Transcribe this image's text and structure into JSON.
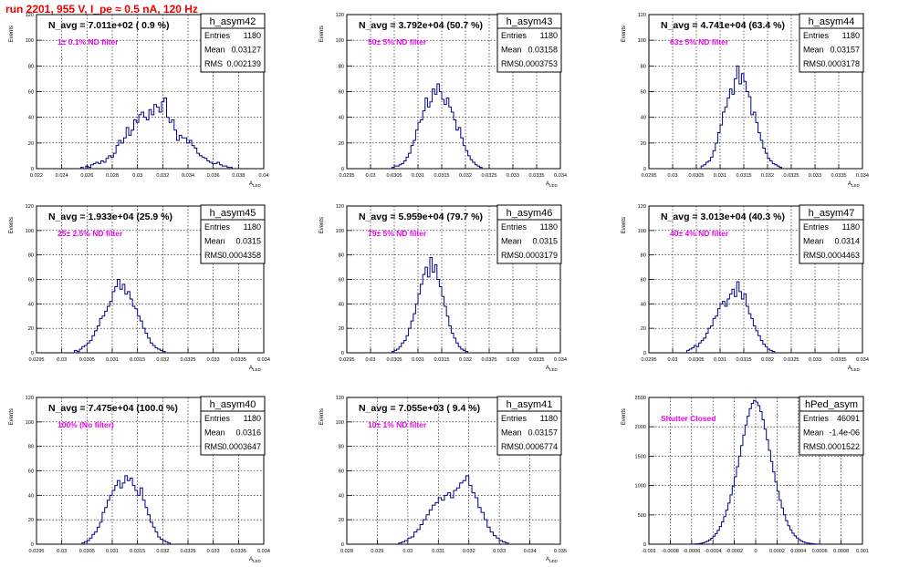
{
  "title": "run 2201,   955 V, I_pe ≈ 0.5 nA, 120 Hz",
  "colors": {
    "title": "#ee0000",
    "histogram": "#00008b",
    "annotation": "#ee00ee",
    "grid": "#000000"
  },
  "chart_data": [
    {
      "type": "histogram",
      "histogram_name": "h_asym42",
      "header": "N_avg = 7.011e+02 ( 0.9 %)",
      "annotation": "1± 0.1% ND filter",
      "stats": {
        "entries": "1180",
        "mean": "0.03127",
        "rms": "0.002139"
      },
      "ylabel": "Events",
      "xlabel": "A_LED",
      "grid": true,
      "xlim": [
        0.022,
        0.04
      ],
      "ylim": [
        0,
        120
      ],
      "yticks": [
        0,
        20,
        40,
        60,
        80,
        100,
        120
      ],
      "xticks": [
        0.022,
        0.024,
        0.026,
        0.028,
        0.03,
        0.032,
        0.034,
        0.036,
        0.038,
        0.04
      ],
      "xtick_labels": [
        "0.022",
        "0.024",
        "0.026",
        "0.028",
        "0.03",
        "0.032",
        "0.034",
        "0.036",
        "0.038",
        "0.04"
      ],
      "bins": {
        "x0": 0.0255,
        "width": 0.0002,
        "counts": [
          1,
          0,
          2,
          1,
          3,
          4,
          5,
          4,
          6,
          5,
          8,
          10,
          9,
          12,
          18,
          22,
          20,
          24,
          32,
          26,
          30,
          38,
          36,
          42,
          44,
          40,
          38,
          46,
          42,
          50,
          48,
          44,
          52,
          55,
          40,
          36,
          38,
          30,
          22,
          26,
          24,
          24,
          20,
          22,
          18,
          16,
          12,
          10,
          9,
          8,
          6,
          5,
          4,
          4,
          5,
          3,
          2,
          2,
          1,
          1
        ]
      }
    },
    {
      "type": "histogram",
      "histogram_name": "h_asym43",
      "header": "N_avg = 3.792e+04 (50.7 %)",
      "annotation": "50± 5% ND filter",
      "stats": {
        "entries": "1180",
        "mean": "0.03158",
        "rms": "0.0003753"
      },
      "ylabel": "Events",
      "xlabel": "A_LED",
      "grid": true,
      "xlim": [
        0.0295,
        0.034
      ],
      "ylim": [
        0,
        120
      ],
      "yticks": [
        0,
        20,
        40,
        60,
        80,
        100,
        120
      ],
      "xticks": [
        0.0295,
        0.03,
        0.0305,
        0.031,
        0.0315,
        0.032,
        0.0325,
        0.033,
        0.0335,
        0.034
      ],
      "xtick_labels": [
        "0.0295",
        "0.03",
        "0.0305",
        "0.031",
        "0.0315",
        "0.032",
        "0.0325",
        "0.033",
        "0.0335",
        "0.034"
      ],
      "bins": {
        "x0": 0.03045,
        "width": 5e-05,
        "counts": [
          1,
          2,
          2,
          3,
          4,
          6,
          9,
          12,
          18,
          22,
          30,
          36,
          38,
          45,
          55,
          48,
          52,
          62,
          58,
          66,
          60,
          54,
          50,
          55,
          48,
          44,
          38,
          30,
          32,
          24,
          18,
          14,
          10,
          7,
          5,
          3,
          2,
          1
        ]
      }
    },
    {
      "type": "histogram",
      "histogram_name": "h_asym44",
      "header": "N_avg = 4.741e+04 (63.4 %)",
      "annotation": "63± 5% ND filter",
      "stats": {
        "entries": "1180",
        "mean": "0.03157",
        "rms": "0.0003178"
      },
      "ylabel": "Events",
      "xlabel": "A_LED",
      "grid": true,
      "xlim": [
        0.0295,
        0.034
      ],
      "ylim": [
        0,
        120
      ],
      "yticks": [
        0,
        20,
        40,
        60,
        80,
        100,
        120
      ],
      "xticks": [
        0.0295,
        0.03,
        0.0305,
        0.031,
        0.0315,
        0.032,
        0.0325,
        0.033,
        0.0335,
        0.034
      ],
      "xtick_labels": [
        "0.0295",
        "0.03",
        "0.0305",
        "0.031",
        "0.0315",
        "0.032",
        "0.0325",
        "0.033",
        "0.0335",
        "0.034"
      ],
      "bins": {
        "x0": 0.0306,
        "width": 5e-05,
        "counts": [
          2,
          3,
          5,
          6,
          9,
          14,
          20,
          28,
          34,
          44,
          48,
          55,
          62,
          58,
          70,
          80,
          66,
          74,
          68,
          60,
          56,
          42,
          44,
          36,
          28,
          22,
          16,
          12,
          8,
          6,
          4,
          3,
          2,
          1
        ]
      }
    },
    {
      "type": "histogram",
      "histogram_name": "h_asym45",
      "header": "N_avg = 1.933e+04 (25.9 %)",
      "annotation": "25± 2.5% ND filter",
      "stats": {
        "entries": "1180",
        "mean": "0.0315",
        "rms": "0.0004358"
      },
      "ylabel": "Events",
      "xlabel": "A_LED",
      "grid": true,
      "xlim": [
        0.0295,
        0.034
      ],
      "ylim": [
        0,
        120
      ],
      "yticks": [
        0,
        20,
        40,
        60,
        80,
        100,
        120
      ],
      "xticks": [
        0.0295,
        0.03,
        0.0305,
        0.031,
        0.0315,
        0.032,
        0.0325,
        0.033,
        0.0335,
        0.034
      ],
      "xtick_labels": [
        "0.0295",
        "0.03",
        "0.0305",
        "0.031",
        "0.0315",
        "0.032",
        "0.0325",
        "0.033",
        "0.0335",
        "0.034"
      ],
      "bins": {
        "x0": 0.03025,
        "width": 5e-05,
        "counts": [
          2,
          1,
          3,
          5,
          6,
          8,
          10,
          14,
          18,
          22,
          28,
          30,
          34,
          38,
          42,
          50,
          54,
          60,
          52,
          56,
          48,
          50,
          44,
          38,
          36,
          30,
          26,
          20,
          16,
          12,
          8,
          6,
          4,
          3,
          2,
          1
        ]
      }
    },
    {
      "type": "histogram",
      "histogram_name": "h_asym46",
      "header": "N_avg = 5.959e+04 (79.7 %)",
      "annotation": "79± 5% ND filter",
      "stats": {
        "entries": "1180",
        "mean": "0.0315",
        "rms": "0.0003179"
      },
      "ylabel": "Events",
      "xlabel": "A_LED",
      "grid": true,
      "xlim": [
        0.0295,
        0.034
      ],
      "ylim": [
        0,
        120
      ],
      "yticks": [
        0,
        20,
        40,
        60,
        80,
        100,
        120
      ],
      "xticks": [
        0.0295,
        0.03,
        0.0305,
        0.031,
        0.0315,
        0.032,
        0.0325,
        0.033,
        0.0335,
        0.034
      ],
      "xtick_labels": [
        "0.0295",
        "0.03",
        "0.0305",
        "0.031",
        "0.0315",
        "0.032",
        "0.0325",
        "0.033",
        "0.0335",
        "0.034"
      ],
      "bins": {
        "x0": 0.03045,
        "width": 5e-05,
        "counts": [
          1,
          2,
          3,
          5,
          8,
          10,
          14,
          20,
          26,
          32,
          40,
          48,
          56,
          64,
          70,
          62,
          78,
          66,
          72,
          60,
          54,
          46,
          38,
          30,
          22,
          16,
          12,
          8,
          5,
          3,
          2,
          1
        ]
      }
    },
    {
      "type": "histogram",
      "histogram_name": "h_asym47",
      "header": "N_avg = 3.013e+04 (40.3 %)",
      "annotation": "40± 4% ND filter",
      "stats": {
        "entries": "1180",
        "mean": "0.0314",
        "rms": "0.0004463"
      },
      "ylabel": "Events",
      "xlabel": "A_LED",
      "grid": true,
      "xlim": [
        0.0295,
        0.034
      ],
      "ylim": [
        0,
        120
      ],
      "yticks": [
        0,
        20,
        40,
        60,
        80,
        100,
        120
      ],
      "xticks": [
        0.0295,
        0.03,
        0.0305,
        0.031,
        0.0315,
        0.032,
        0.0325,
        0.033,
        0.0335,
        0.034
      ],
      "xtick_labels": [
        "0.0295",
        "0.03",
        "0.0305",
        "0.031",
        "0.0315",
        "0.032",
        "0.0325",
        "0.033",
        "0.0335",
        "0.034"
      ],
      "bins": {
        "x0": 0.0303,
        "width": 5e-05,
        "counts": [
          2,
          3,
          4,
          6,
          5,
          8,
          10,
          12,
          16,
          20,
          22,
          28,
          30,
          36,
          40,
          42,
          38,
          44,
          48,
          52,
          46,
          58,
          50,
          44,
          48,
          38,
          32,
          28,
          22,
          18,
          14,
          10,
          7,
          5,
          3,
          2,
          1
        ]
      }
    },
    {
      "type": "histogram",
      "histogram_name": "h_asym40",
      "header": "N_avg = 7.475e+04 (100.0 %)",
      "annotation": "100% (No filter)",
      "stats": {
        "entries": "1180",
        "mean": "0.0316",
        "rms": "0.0003647"
      },
      "ylabel": "Events",
      "xlabel": "A_LED",
      "grid": true,
      "xlim": [
        0.0295,
        0.034
      ],
      "ylim": [
        0,
        120
      ],
      "yticks": [
        0,
        20,
        40,
        60,
        80,
        100,
        120
      ],
      "xticks": [
        0.0295,
        0.03,
        0.0305,
        0.031,
        0.0315,
        0.032,
        0.0325,
        0.033,
        0.0335,
        0.034
      ],
      "xtick_labels": [
        "0.0295",
        "0.03",
        "0.0305",
        "0.031",
        "0.0315",
        "0.032",
        "0.0325",
        "0.033",
        "0.0335",
        "0.034"
      ],
      "bins": {
        "x0": 0.0304,
        "width": 5e-05,
        "counts": [
          1,
          2,
          3,
          5,
          8,
          10,
          14,
          18,
          26,
          30,
          36,
          40,
          44,
          48,
          52,
          46,
          50,
          56,
          52,
          54,
          48,
          44,
          40,
          46,
          36,
          30,
          24,
          18,
          14,
          10,
          6,
          4,
          3,
          2,
          1
        ]
      }
    },
    {
      "type": "histogram",
      "histogram_name": "h_asym41",
      "header": "N_avg = 7.055e+03 ( 9.4 %)",
      "annotation": "10± 1% ND filter",
      "stats": {
        "entries": "1180",
        "mean": "0.03157",
        "rms": "0.0006774"
      },
      "ylabel": "Events",
      "xlabel": "A_LED",
      "grid": true,
      "xlim": [
        0.028,
        0.035
      ],
      "ylim": [
        0,
        120
      ],
      "yticks": [
        0,
        20,
        40,
        60,
        80,
        100,
        120
      ],
      "xticks": [
        0.028,
        0.029,
        0.03,
        0.031,
        0.032,
        0.033,
        0.034,
        0.035
      ],
      "xtick_labels": [
        "0.028",
        "0.029",
        "0.03",
        "0.031",
        "0.032",
        "0.033",
        "0.034",
        "0.035"
      ],
      "bins": {
        "x0": 0.0297,
        "width": 0.0001,
        "counts": [
          1,
          2,
          3,
          5,
          6,
          10,
          12,
          16,
          20,
          24,
          28,
          32,
          34,
          38,
          36,
          40,
          42,
          38,
          44,
          46,
          50,
          52,
          56,
          48,
          42,
          38,
          30,
          26,
          20,
          14,
          10,
          7,
          5,
          3,
          2,
          1
        ]
      }
    },
    {
      "type": "histogram",
      "histogram_name": "hPed_asym",
      "header": "",
      "annotation": "Shutter Closed",
      "stats": {
        "entries": "46091",
        "mean": "-1.4e-06",
        "rms": "0.0001522"
      },
      "ylabel": "Events",
      "xlabel": "",
      "grid": true,
      "xlim": [
        -0.001,
        0.001
      ],
      "ylim": [
        0,
        2500
      ],
      "yticks": [
        0,
        500,
        1000,
        1500,
        2000,
        2500
      ],
      "xticks": [
        -0.001,
        -0.0008,
        -0.0006,
        -0.0004,
        -0.0002,
        0,
        0.0002,
        0.0004,
        0.0006,
        0.0008,
        0.001
      ],
      "xtick_labels": [
        "-0.001",
        "-0.0008",
        "-0.0006",
        "-0.0004",
        "-0.0002",
        "0",
        "0.0002",
        "0.0004",
        "0.0006",
        "0.0008",
        "0.001"
      ],
      "bins": {
        "x0": -0.0006,
        "width": 2e-05,
        "counts": [
          2,
          4,
          6,
          10,
          16,
          24,
          36,
          52,
          74,
          100,
          136,
          180,
          236,
          300,
          380,
          470,
          580,
          700,
          840,
          990,
          1150,
          1320,
          1500,
          1680,
          1860,
          2030,
          2180,
          2310,
          2400,
          2450,
          2420,
          2360,
          2260,
          2120,
          1960,
          1780,
          1600,
          1410,
          1230,
          1060,
          900,
          750,
          620,
          500,
          400,
          315,
          245,
          188,
          142,
          106,
          78,
          56,
          40,
          28,
          20,
          14,
          10,
          6,
          4,
          2
        ]
      }
    }
  ]
}
